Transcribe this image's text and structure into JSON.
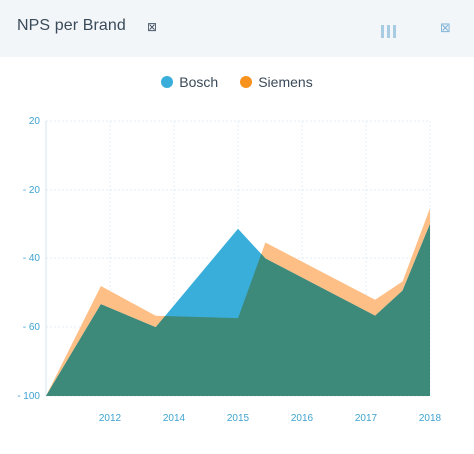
{
  "header": {
    "title": "NPS per Brand",
    "title_icon": "⊠",
    "menu_icon": "bars-icon",
    "close_icon": "⊠"
  },
  "colors": {
    "bosch": "#3aaedb",
    "siemens": "#fdbf86",
    "overlap": "#3e8a7a",
    "grid": "#e3edf5",
    "axis_text": "#3fa2d0"
  },
  "chart_data": {
    "type": "area",
    "title": "",
    "xlabel": "",
    "ylabel": "",
    "x_ticks": [
      "2012",
      "2014",
      "2015",
      "2016",
      "2017",
      "2018"
    ],
    "y_ticks": [
      "20",
      "- 20",
      "- 40",
      "- 60",
      "- 100"
    ],
    "ylim": [
      -100,
      20
    ],
    "grid": true,
    "legend": "top-center",
    "series": [
      {
        "name": "Bosch",
        "color": "#3aaedb",
        "points": [
          {
            "x": 2011.0,
            "y": -100
          },
          {
            "x": 2012.0,
            "y": -60
          },
          {
            "x": 2013.0,
            "y": -70
          },
          {
            "x": 2014.5,
            "y": -27
          },
          {
            "x": 2015.0,
            "y": -40
          },
          {
            "x": 2017.0,
            "y": -65
          },
          {
            "x": 2017.5,
            "y": -54
          },
          {
            "x": 2018.0,
            "y": -25
          }
        ]
      },
      {
        "name": "Siemens",
        "color": "#f7921e",
        "points": [
          {
            "x": 2011.0,
            "y": -100
          },
          {
            "x": 2012.0,
            "y": -52
          },
          {
            "x": 2013.0,
            "y": -65
          },
          {
            "x": 2014.5,
            "y": -66
          },
          {
            "x": 2015.0,
            "y": -33
          },
          {
            "x": 2017.0,
            "y": -58
          },
          {
            "x": 2017.5,
            "y": -50
          },
          {
            "x": 2018.0,
            "y": -18
          }
        ]
      }
    ]
  }
}
